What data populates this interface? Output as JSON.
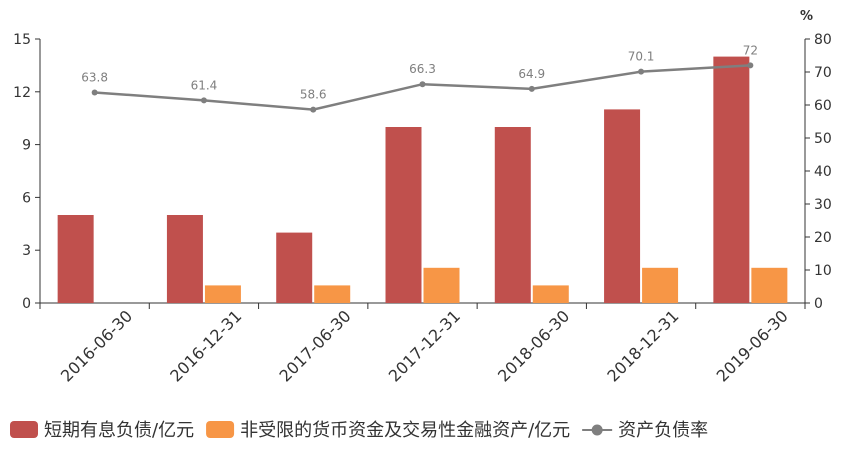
{
  "chart_data": {
    "type": "bar",
    "categories": [
      "2016-06-30",
      "2016-12-31",
      "2017-06-30",
      "2017-12-31",
      "2018-06-30",
      "2018-12-31",
      "2019-06-30"
    ],
    "series": [
      {
        "name": "短期有息负债/亿元",
        "type": "bar",
        "axis": "left",
        "color": "#c0504d",
        "values": [
          5,
          5,
          4,
          10,
          10,
          11,
          14
        ]
      },
      {
        "name": "非受限的货币资金及交易性金融资产/亿元",
        "type": "bar",
        "axis": "left",
        "color": "#f79646",
        "values": [
          0,
          1,
          1,
          2,
          1,
          2,
          2
        ]
      },
      {
        "name": "资产负债率",
        "type": "line",
        "axis": "right",
        "color": "#7f7f7f",
        "values": [
          63.8,
          61.4,
          58.6,
          66.3,
          64.9,
          70.1,
          72
        ],
        "labels": [
          "63.8",
          "61.4",
          "58.6",
          "66.3",
          "64.9",
          "70.1",
          "72"
        ]
      }
    ],
    "left_axis": {
      "ylim": [
        0,
        15
      ],
      "ticks": [
        "0",
        "3",
        "6",
        "9",
        "12",
        "15"
      ]
    },
    "right_axis": {
      "ylim": [
        0,
        80
      ],
      "unit": "%",
      "ticks": [
        "0",
        "10",
        "20",
        "30",
        "40",
        "50",
        "60",
        "70",
        "80"
      ]
    },
    "grid": false,
    "legend": "bottom"
  }
}
